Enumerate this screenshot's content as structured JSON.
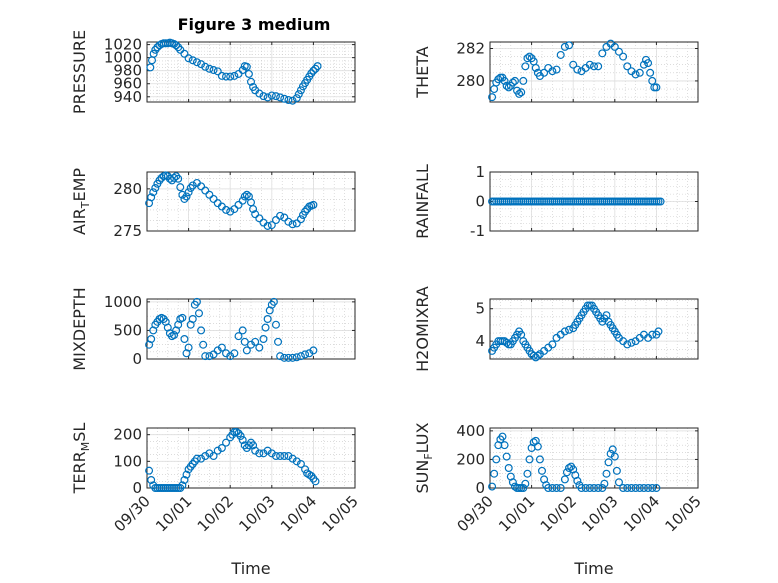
{
  "figure": {
    "title": "Figure 3 medium",
    "marker_color": "#0072BD",
    "grid": true,
    "grid_style": "dotted",
    "marker": "open-circle"
  },
  "chart_data": [
    {
      "type": "scatter",
      "ylabel": "PRESSURE",
      "ylabel_main": "PRESSURE",
      "ylabel_sub": "",
      "ylabel_rest": "",
      "ylim": [
        932,
        1024
      ],
      "yticks": [
        940,
        960,
        980,
        1000,
        1020
      ],
      "xlim": [
        0,
        5
      ],
      "xticks": [
        "09/30",
        "10/01",
        "10/02",
        "10/03",
        "10/04",
        "10/05"
      ],
      "show_xticklabels": false,
      "x": [
        0.08,
        0.12,
        0.16,
        0.2,
        0.25,
        0.3,
        0.35,
        0.4,
        0.45,
        0.5,
        0.55,
        0.6,
        0.65,
        0.7,
        0.75,
        0.8,
        0.9,
        1.0,
        1.1,
        1.2,
        1.3,
        1.4,
        1.5,
        1.6,
        1.7,
        1.8,
        1.9,
        2.0,
        2.1,
        2.2,
        2.3,
        2.35,
        2.4,
        2.45,
        2.5,
        2.55,
        2.6,
        2.7,
        2.8,
        2.9,
        3.0,
        3.1,
        3.2,
        3.3,
        3.4,
        3.5,
        3.6,
        3.65,
        3.7,
        3.75,
        3.8,
        3.85,
        3.9,
        3.95,
        4.0,
        4.05,
        4.1
      ],
      "y": [
        985,
        996,
        1006,
        1012,
        1016,
        1019,
        1021,
        1022,
        1022,
        1022,
        1023,
        1022,
        1021,
        1019,
        1016,
        1012,
        1006,
        999,
        996,
        993,
        990,
        986,
        983,
        981,
        979,
        972,
        971,
        971,
        972,
        975,
        981,
        987,
        986,
        975,
        963,
        955,
        950,
        945,
        941,
        939,
        942,
        941,
        939,
        937,
        935,
        934,
        938,
        944,
        950,
        956,
        961,
        966,
        971,
        976,
        980,
        983,
        987
      ]
    },
    {
      "type": "scatter",
      "ylabel": "THETA",
      "ylabel_main": "THETA",
      "ylabel_sub": "",
      "ylabel_rest": "",
      "ylim": [
        278.7,
        282.4
      ],
      "yticks": [
        280,
        282
      ],
      "xlim": [
        0,
        5
      ],
      "xticks": [
        "09/30",
        "10/01",
        "10/02",
        "10/03",
        "10/04",
        "10/05"
      ],
      "show_xticklabels": false,
      "x": [
        0.05,
        0.1,
        0.15,
        0.2,
        0.25,
        0.3,
        0.35,
        0.4,
        0.45,
        0.5,
        0.55,
        0.6,
        0.65,
        0.7,
        0.75,
        0.8,
        0.85,
        0.9,
        0.95,
        1.0,
        1.05,
        1.1,
        1.15,
        1.2,
        1.3,
        1.4,
        1.5,
        1.6,
        1.7,
        1.8,
        1.9,
        2.0,
        2.1,
        2.2,
        2.3,
        2.4,
        2.5,
        2.6,
        2.7,
        2.8,
        2.9,
        3.0,
        3.1,
        3.2,
        3.3,
        3.4,
        3.5,
        3.6,
        3.7,
        3.75,
        3.8,
        3.85,
        3.9,
        3.95,
        4.0
      ],
      "y": [
        279.0,
        279.5,
        279.9,
        280.1,
        280.2,
        280.2,
        280.0,
        279.7,
        279.6,
        279.7,
        279.9,
        280.0,
        279.4,
        279.2,
        279.3,
        280.0,
        280.9,
        281.4,
        281.5,
        281.4,
        281.2,
        280.8,
        280.5,
        280.3,
        280.5,
        280.8,
        280.6,
        280.7,
        281.6,
        282.1,
        282.2,
        281.0,
        280.7,
        280.6,
        280.8,
        281.0,
        280.9,
        280.9,
        281.7,
        282.1,
        282.3,
        282.1,
        281.8,
        281.5,
        280.9,
        280.6,
        280.4,
        280.5,
        281.0,
        281.3,
        281.1,
        280.5,
        280.0,
        279.6,
        279.6
      ]
    },
    {
      "type": "scatter",
      "ylabel": "AIR_TEMP",
      "ylabel_main": "AIR",
      "ylabel_sub": "T",
      "ylabel_rest": "EMP",
      "ylim": [
        275,
        282
      ],
      "yticks": [
        275,
        280
      ],
      "xlim": [
        0,
        5
      ],
      "xticks": [
        "09/30",
        "10/01",
        "10/02",
        "10/03",
        "10/04",
        "10/05"
      ],
      "show_xticklabels": false,
      "x": [
        0.05,
        0.1,
        0.15,
        0.2,
        0.25,
        0.3,
        0.35,
        0.4,
        0.45,
        0.5,
        0.55,
        0.6,
        0.65,
        0.7,
        0.75,
        0.8,
        0.85,
        0.9,
        0.95,
        1.0,
        1.05,
        1.1,
        1.2,
        1.3,
        1.4,
        1.5,
        1.6,
        1.7,
        1.8,
        1.9,
        2.0,
        2.1,
        2.2,
        2.3,
        2.35,
        2.4,
        2.45,
        2.5,
        2.55,
        2.6,
        2.7,
        2.8,
        2.9,
        3.0,
        3.1,
        3.2,
        3.3,
        3.4,
        3.5,
        3.6,
        3.7,
        3.75,
        3.8,
        3.85,
        3.9,
        3.95,
        4.0
      ],
      "y": [
        278.3,
        279.0,
        279.6,
        280.1,
        280.6,
        281.0,
        281.3,
        281.5,
        281.6,
        281.5,
        281.2,
        281.0,
        281.3,
        281.5,
        281.2,
        280.2,
        279.3,
        278.8,
        279.1,
        279.6,
        280.1,
        280.4,
        280.7,
        280.3,
        279.8,
        279.3,
        278.8,
        278.3,
        277.9,
        277.5,
        277.3,
        277.6,
        278.1,
        278.6,
        279.1,
        279.3,
        279.1,
        278.4,
        277.6,
        277.0,
        276.5,
        276.0,
        275.6,
        275.7,
        276.3,
        276.8,
        276.6,
        276.1,
        275.8,
        275.9,
        276.4,
        276.9,
        277.3,
        277.6,
        277.9,
        278.0,
        278.1
      ]
    },
    {
      "type": "scatter",
      "ylabel": "RAINFALL",
      "ylabel_main": "RAINFALL",
      "ylabel_sub": "",
      "ylabel_rest": "",
      "ylim": [
        -1,
        1
      ],
      "yticks": [
        -1,
        0,
        1
      ],
      "xlim": [
        0,
        5
      ],
      "xticks": [
        "09/30",
        "10/01",
        "10/02",
        "10/03",
        "10/04",
        "10/05"
      ],
      "show_xticklabels": false,
      "x": [
        0.05,
        0.1,
        0.15,
        0.2,
        0.25,
        0.3,
        0.35,
        0.4,
        0.45,
        0.5,
        0.55,
        0.6,
        0.65,
        0.7,
        0.75,
        0.8,
        0.85,
        0.9,
        0.95,
        1.0,
        1.05,
        1.1,
        1.15,
        1.2,
        1.25,
        1.3,
        1.35,
        1.4,
        1.45,
        1.5,
        1.55,
        1.6,
        1.65,
        1.7,
        1.75,
        1.8,
        1.85,
        1.9,
        1.95,
        2.0,
        2.05,
        2.1,
        2.15,
        2.2,
        2.25,
        2.3,
        2.35,
        2.4,
        2.45,
        2.5,
        2.55,
        2.6,
        2.65,
        2.7,
        2.75,
        2.8,
        2.85,
        2.9,
        2.95,
        3.0,
        3.05,
        3.1,
        3.15,
        3.2,
        3.25,
        3.3,
        3.35,
        3.4,
        3.45,
        3.5,
        3.55,
        3.6,
        3.65,
        3.7,
        3.75,
        3.8,
        3.85,
        3.9,
        3.95,
        4.0,
        4.05,
        4.1
      ],
      "y": [
        0,
        0,
        0,
        0,
        0,
        0,
        0,
        0,
        0,
        0,
        0,
        0,
        0,
        0,
        0,
        0,
        0,
        0,
        0,
        0,
        0,
        0,
        0,
        0,
        0,
        0,
        0,
        0,
        0,
        0,
        0,
        0,
        0,
        0,
        0,
        0,
        0,
        0,
        0,
        0,
        0,
        0,
        0,
        0,
        0,
        0,
        0,
        0,
        0,
        0,
        0,
        0,
        0,
        0,
        0,
        0,
        0,
        0,
        0,
        0,
        0,
        0,
        0,
        0,
        0,
        0,
        0,
        0,
        0,
        0,
        0,
        0,
        0,
        0,
        0,
        0,
        0,
        0,
        0,
        0,
        0,
        0
      ]
    },
    {
      "type": "scatter",
      "ylabel": "MIXDEPTH",
      "ylabel_main": "MIXDEPTH",
      "ylabel_sub": "",
      "ylabel_rest": "",
      "ylim": [
        0,
        1050
      ],
      "yticks": [
        0,
        500,
        1000
      ],
      "xlim": [
        0,
        5
      ],
      "xticks": [
        "09/30",
        "10/01",
        "10/02",
        "10/03",
        "10/04",
        "10/05"
      ],
      "show_xticklabels": false,
      "x": [
        0.05,
        0.1,
        0.15,
        0.2,
        0.25,
        0.3,
        0.35,
        0.4,
        0.45,
        0.5,
        0.55,
        0.6,
        0.65,
        0.7,
        0.75,
        0.8,
        0.85,
        0.9,
        0.95,
        1.0,
        1.05,
        1.1,
        1.15,
        1.2,
        1.25,
        1.3,
        1.35,
        1.4,
        1.5,
        1.6,
        1.7,
        1.8,
        1.9,
        2.0,
        2.1,
        2.2,
        2.3,
        2.35,
        2.4,
        2.5,
        2.6,
        2.7,
        2.8,
        2.85,
        2.9,
        2.95,
        3.0,
        3.05,
        3.1,
        3.15,
        3.2,
        3.3,
        3.4,
        3.5,
        3.6,
        3.7,
        3.8,
        3.9,
        4.0
      ],
      "y": [
        250,
        350,
        500,
        600,
        650,
        700,
        720,
        700,
        650,
        550,
        450,
        400,
        420,
        500,
        600,
        700,
        720,
        350,
        100,
        200,
        600,
        700,
        950,
        1000,
        800,
        500,
        250,
        50,
        50,
        80,
        150,
        200,
        100,
        50,
        100,
        400,
        500,
        300,
        150,
        250,
        300,
        200,
        350,
        550,
        700,
        850,
        950,
        1000,
        600,
        300,
        50,
        20,
        20,
        20,
        30,
        50,
        80,
        100,
        150
      ]
    },
    {
      "type": "scatter",
      "ylabel": "H2OMIXRA",
      "ylabel_main": "H2OMIXRA",
      "ylabel_sub": "",
      "ylabel_rest": "",
      "ylim": [
        3.45,
        5.3
      ],
      "yticks": [
        4,
        5
      ],
      "xlim": [
        0,
        5
      ],
      "xticks": [
        "09/30",
        "10/01",
        "10/02",
        "10/03",
        "10/04",
        "10/05"
      ],
      "show_xticklabels": false,
      "x": [
        0.05,
        0.1,
        0.15,
        0.2,
        0.25,
        0.3,
        0.35,
        0.4,
        0.45,
        0.5,
        0.55,
        0.6,
        0.65,
        0.7,
        0.75,
        0.8,
        0.85,
        0.9,
        0.95,
        1.0,
        1.05,
        1.1,
        1.15,
        1.2,
        1.3,
        1.4,
        1.5,
        1.6,
        1.7,
        1.8,
        1.9,
        2.0,
        2.05,
        2.1,
        2.15,
        2.2,
        2.25,
        2.3,
        2.35,
        2.4,
        2.45,
        2.5,
        2.55,
        2.6,
        2.65,
        2.7,
        2.75,
        2.8,
        2.85,
        2.9,
        2.95,
        3.0,
        3.05,
        3.1,
        3.2,
        3.3,
        3.4,
        3.5,
        3.6,
        3.7,
        3.8,
        3.9,
        4.0,
        4.05
      ],
      "y": [
        3.7,
        3.8,
        3.9,
        4.0,
        4.0,
        4.0,
        4.0,
        3.95,
        3.9,
        3.9,
        4.0,
        4.1,
        4.2,
        4.3,
        4.2,
        4.0,
        3.9,
        3.8,
        3.7,
        3.6,
        3.55,
        3.5,
        3.55,
        3.6,
        3.7,
        3.8,
        3.9,
        4.1,
        4.2,
        4.3,
        4.35,
        4.4,
        4.5,
        4.6,
        4.7,
        4.8,
        4.9,
        5.0,
        5.1,
        5.1,
        5.1,
        5.0,
        4.9,
        4.8,
        4.7,
        4.6,
        4.7,
        4.8,
        4.6,
        4.5,
        4.4,
        4.3,
        4.2,
        4.1,
        4.0,
        3.9,
        3.95,
        4.0,
        4.1,
        4.2,
        4.1,
        4.2,
        4.2,
        4.3
      ]
    },
    {
      "type": "scatter",
      "ylabel": "TERR_MSL",
      "ylabel_main": "TERR",
      "ylabel_sub": "M",
      "ylabel_rest": "SL",
      "ylim": [
        0,
        225
      ],
      "yticks": [
        0,
        100,
        200
      ],
      "xlim": [
        0,
        5
      ],
      "xticks": [
        "09/30",
        "10/01",
        "10/02",
        "10/03",
        "10/04",
        "10/05"
      ],
      "show_xticklabels": true,
      "x": [
        0.05,
        0.1,
        0.15,
        0.2,
        0.25,
        0.3,
        0.35,
        0.4,
        0.45,
        0.5,
        0.55,
        0.6,
        0.65,
        0.7,
        0.75,
        0.8,
        0.85,
        0.9,
        0.95,
        1.0,
        1.05,
        1.1,
        1.15,
        1.2,
        1.3,
        1.4,
        1.5,
        1.6,
        1.7,
        1.8,
        1.9,
        2.0,
        2.05,
        2.1,
        2.15,
        2.2,
        2.25,
        2.3,
        2.35,
        2.4,
        2.45,
        2.5,
        2.55,
        2.6,
        2.7,
        2.8,
        2.9,
        3.0,
        3.1,
        3.2,
        3.3,
        3.4,
        3.5,
        3.6,
        3.7,
        3.8,
        3.85,
        3.9,
        3.95,
        4.0,
        4.05
      ],
      "y": [
        65,
        30,
        10,
        0,
        0,
        0,
        0,
        0,
        0,
        0,
        0,
        0,
        0,
        0,
        0,
        0,
        10,
        30,
        50,
        70,
        80,
        90,
        100,
        110,
        110,
        120,
        130,
        120,
        140,
        150,
        170,
        190,
        200,
        210,
        210,
        205,
        195,
        180,
        160,
        150,
        160,
        170,
        160,
        140,
        130,
        130,
        140,
        130,
        120,
        120,
        120,
        120,
        110,
        100,
        90,
        70,
        55,
        50,
        45,
        35,
        25
      ]
    },
    {
      "type": "scatter",
      "ylabel": "SUN_FLUX",
      "ylabel_main": "SUN",
      "ylabel_sub": "F",
      "ylabel_rest": "LUX",
      "ylim": [
        0,
        420
      ],
      "yticks": [
        0,
        200,
        400
      ],
      "xlim": [
        0,
        5
      ],
      "xticks": [
        "09/30",
        "10/01",
        "10/02",
        "10/03",
        "10/04",
        "10/05"
      ],
      "show_xticklabels": true,
      "x": [
        0.05,
        0.1,
        0.15,
        0.2,
        0.25,
        0.3,
        0.35,
        0.4,
        0.45,
        0.5,
        0.55,
        0.6,
        0.65,
        0.7,
        0.75,
        0.8,
        0.85,
        0.9,
        0.95,
        1.0,
        1.05,
        1.1,
        1.15,
        1.2,
        1.25,
        1.3,
        1.35,
        1.4,
        1.5,
        1.6,
        1.7,
        1.8,
        1.85,
        1.9,
        1.95,
        2.0,
        2.05,
        2.1,
        2.15,
        2.2,
        2.3,
        2.4,
        2.5,
        2.6,
        2.7,
        2.75,
        2.8,
        2.85,
        2.9,
        2.95,
        3.0,
        3.05,
        3.1,
        3.2,
        3.3,
        3.4,
        3.5,
        3.6,
        3.7,
        3.8,
        3.9,
        4.0
      ],
      "y": [
        10,
        100,
        200,
        300,
        340,
        360,
        300,
        220,
        140,
        80,
        40,
        10,
        0,
        0,
        0,
        0,
        30,
        100,
        200,
        280,
        320,
        330,
        290,
        200,
        120,
        60,
        20,
        0,
        0,
        0,
        0,
        60,
        110,
        140,
        150,
        130,
        90,
        50,
        20,
        0,
        0,
        0,
        0,
        0,
        0,
        30,
        100,
        180,
        240,
        270,
        220,
        120,
        40,
        0,
        0,
        0,
        0,
        0,
        0,
        0,
        0,
        0
      ]
    }
  ],
  "xlabels": [
    "Time",
    "Time"
  ]
}
